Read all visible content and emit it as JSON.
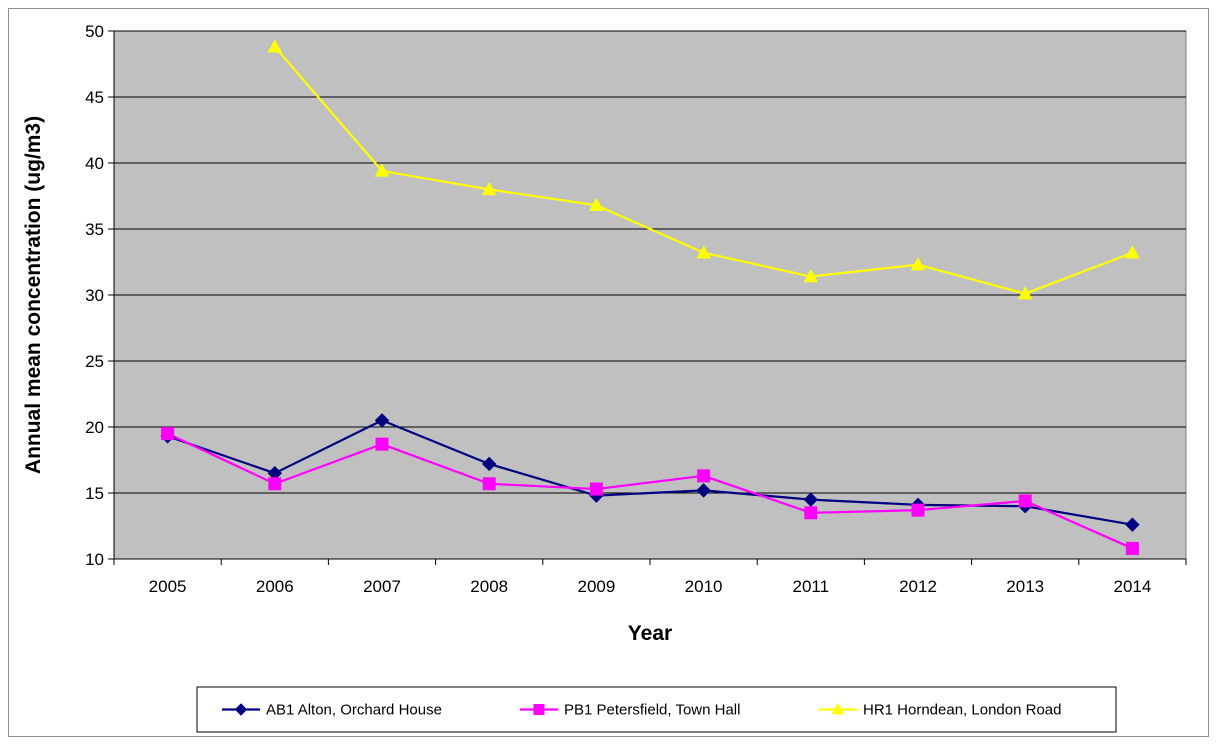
{
  "chart_data": {
    "type": "line",
    "title": "",
    "xlabel": "Year",
    "ylabel": "Annual mean concentration (ug/m3)",
    "categories": [
      "2005",
      "2006",
      "2007",
      "2008",
      "2009",
      "2010",
      "2011",
      "2012",
      "2013",
      "2014"
    ],
    "ylim": [
      10,
      50
    ],
    "yticks": [
      "10",
      "15",
      "20",
      "25",
      "30",
      "35",
      "40",
      "45",
      "50"
    ],
    "grid": true,
    "legend_position": "bottom",
    "plot_background": "#c0c0c0",
    "series": [
      {
        "name": "AB1 Alton, Orchard House",
        "color": "#000080",
        "marker": "diamond",
        "values": [
          19.3,
          16.5,
          20.5,
          17.2,
          14.8,
          15.2,
          14.5,
          14.1,
          14.0,
          12.6
        ]
      },
      {
        "name": "PB1 Petersfield, Town Hall",
        "color": "#ff00ff",
        "marker": "square",
        "values": [
          19.5,
          15.7,
          18.7,
          15.7,
          15.3,
          16.3,
          13.5,
          13.7,
          14.4,
          10.8
        ]
      },
      {
        "name": "HR1 Horndean, London Road",
        "color": "#ffff00",
        "marker": "triangle",
        "values": [
          null,
          48.8,
          39.4,
          38.0,
          36.8,
          33.2,
          31.4,
          32.3,
          30.1,
          33.2
        ]
      }
    ]
  }
}
